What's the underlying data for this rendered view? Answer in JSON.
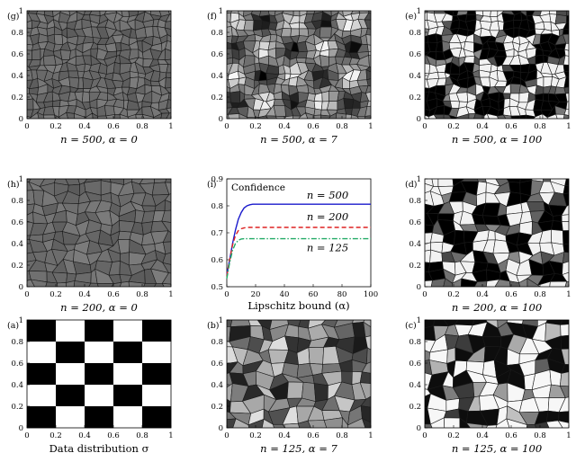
{
  "panels": [
    {
      "id": "g",
      "label": "(g)",
      "kind": "voronoi",
      "n": 500,
      "alpha": 0,
      "caption": "n = 500, α = 0",
      "style": "uniform"
    },
    {
      "id": "f",
      "label": "(f)",
      "kind": "voronoi",
      "n": 500,
      "alpha": 7,
      "caption": "n = 500, α = 7",
      "style": "smooth"
    },
    {
      "id": "e",
      "label": "(e)",
      "kind": "voronoi",
      "n": 500,
      "alpha": 100,
      "caption": "n = 500, α = 100",
      "style": "sharp"
    },
    {
      "id": "h",
      "label": "(h)",
      "kind": "voronoi",
      "n": 200,
      "alpha": 0,
      "caption": "n = 200, α = 0",
      "style": "uniform"
    },
    {
      "id": "i",
      "label": "(i)",
      "kind": "chart"
    },
    {
      "id": "d",
      "label": "(d)",
      "kind": "voronoi",
      "n": 200,
      "alpha": 100,
      "caption": "n = 200, α = 100",
      "style": "sharp"
    },
    {
      "id": "a",
      "label": "(a)",
      "kind": "checker",
      "caption": "Data distribution σ"
    },
    {
      "id": "b",
      "label": "(b)",
      "kind": "voronoi",
      "n": 125,
      "alpha": 7,
      "caption": "n = 125, α = 7",
      "style": "random"
    },
    {
      "id": "c",
      "label": "(c)",
      "kind": "voronoi",
      "n": 125,
      "alpha": 100,
      "caption": "n = 125, α = 100",
      "style": "random-sharp"
    }
  ],
  "square_axes": {
    "x_ticks": [
      "0",
      "0.2",
      "0.4",
      "0.6",
      "0.8",
      "1"
    ],
    "y_ticks": [
      "0",
      "0.2",
      "0.4",
      "0.6",
      "0.8",
      "1"
    ]
  },
  "chart_data": {
    "type": "line",
    "title": "Confidence",
    "xlabel": "Lipschitz bound (α)",
    "ylabel": "",
    "xlim": [
      0,
      100
    ],
    "ylim": [
      0.5,
      0.9
    ],
    "x_ticks": [
      0,
      20,
      40,
      60,
      80,
      100
    ],
    "y_ticks": [
      0.5,
      0.6,
      0.7,
      0.8,
      0.9
    ],
    "series": [
      {
        "name": "n = 500",
        "color": "#1a1acc",
        "dash": "solid",
        "x": [
          0,
          2,
          4,
          6,
          8,
          10,
          12,
          14,
          16,
          18,
          20,
          25,
          30,
          40,
          60,
          80,
          100
        ],
        "y": [
          0.545,
          0.6,
          0.66,
          0.71,
          0.75,
          0.775,
          0.792,
          0.8,
          0.804,
          0.806,
          0.806,
          0.806,
          0.806,
          0.806,
          0.806,
          0.806,
          0.806
        ]
      },
      {
        "name": "n = 200",
        "color": "#dd2222",
        "dash": "dashed",
        "x": [
          0,
          2,
          4,
          6,
          8,
          10,
          12,
          14,
          16,
          20,
          30,
          40,
          60,
          80,
          100
        ],
        "y": [
          0.54,
          0.6,
          0.655,
          0.69,
          0.708,
          0.715,
          0.718,
          0.72,
          0.72,
          0.72,
          0.72,
          0.72,
          0.72,
          0.72,
          0.72
        ]
      },
      {
        "name": "n = 125",
        "color": "#22aa66",
        "dash": "dashdot",
        "x": [
          0,
          2,
          4,
          6,
          8,
          10,
          12,
          14,
          20,
          30,
          40,
          60,
          80,
          100
        ],
        "y": [
          0.53,
          0.59,
          0.635,
          0.66,
          0.672,
          0.677,
          0.678,
          0.678,
          0.678,
          0.678,
          0.678,
          0.678,
          0.678,
          0.678
        ]
      }
    ]
  }
}
